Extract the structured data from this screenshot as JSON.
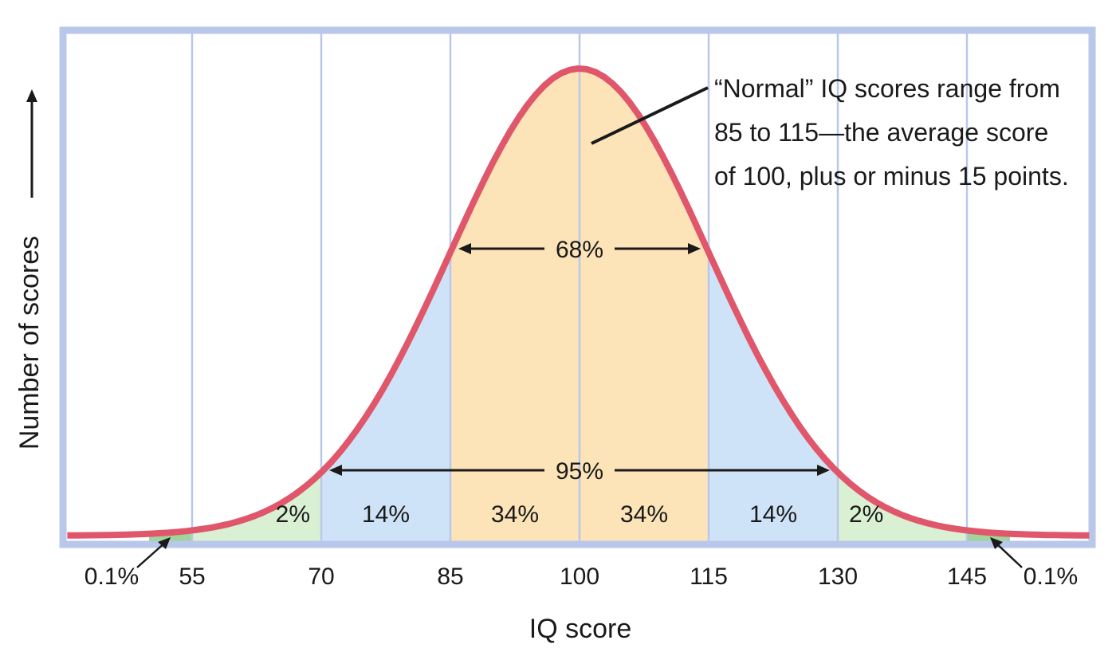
{
  "chart_data": {
    "type": "area",
    "xlabel": "IQ score",
    "ylabel": "Number of scores",
    "mean": 100,
    "sd": 15,
    "xlim": [
      40,
      160
    ],
    "x_ticks": [
      55,
      70,
      85,
      100,
      115,
      130,
      145
    ],
    "grid": true,
    "segments": [
      {
        "from": 40,
        "to": 55,
        "label": "",
        "color": "#ffffff"
      },
      {
        "from": 55,
        "to": 70,
        "label": "2%",
        "color": "#d9f0d3"
      },
      {
        "from": 70,
        "to": 85,
        "label": "14%",
        "color": "#cfe3f8"
      },
      {
        "from": 85,
        "to": 100,
        "label": "34%",
        "color": "#fce3b8"
      },
      {
        "from": 100,
        "to": 115,
        "label": "34%",
        "color": "#fce3b8"
      },
      {
        "from": 115,
        "to": 130,
        "label": "14%",
        "color": "#cfe3f8"
      },
      {
        "from": 130,
        "to": 145,
        "label": "2%",
        "color": "#d9f0d3"
      },
      {
        "from": 145,
        "to": 160,
        "label": "",
        "color": "#ffffff"
      }
    ],
    "tails": [
      {
        "label": "0.1%",
        "side": "left"
      },
      {
        "label": "0.1%",
        "side": "right"
      }
    ],
    "brackets": [
      {
        "from": 85,
        "to": 115,
        "label": "68%"
      },
      {
        "from": 70,
        "to": 130,
        "label": "95%"
      }
    ],
    "annotation": {
      "lines": [
        "“Normal” IQ scores range from",
        "85 to 115—the average score",
        "of 100, plus or minus 15 points."
      ]
    },
    "colors": {
      "curve": "#e0566b",
      "frame": "#b9c7ea",
      "grid": "#b9c7ea",
      "extreme_tail": "#9fd49a"
    }
  }
}
